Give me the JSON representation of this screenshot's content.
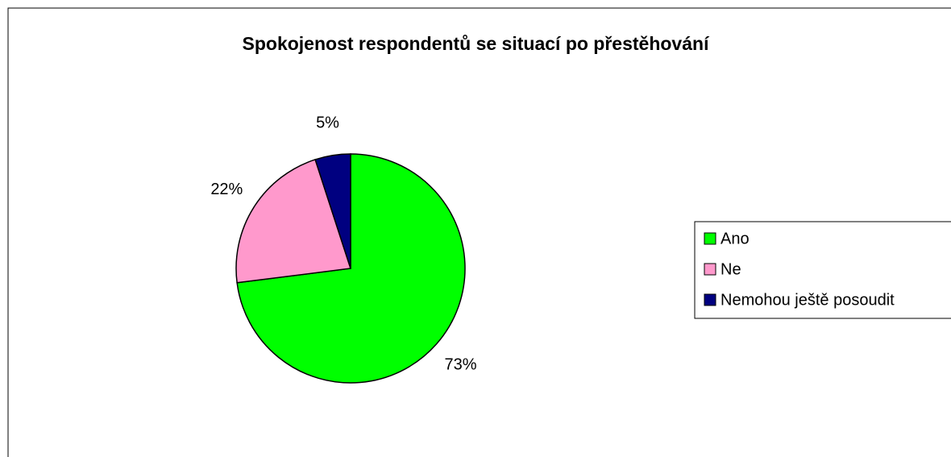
{
  "chart_data": {
    "type": "pie",
    "title": "Spokojenost respondentů se situací po přestěhování",
    "categories": [
      "Ano",
      "Ne",
      "Nemohou ještě posoudit"
    ],
    "values": [
      73,
      22,
      5
    ],
    "value_labels": [
      "73%",
      "22%",
      "5%"
    ],
    "colors": [
      "#00ff00",
      "#ff99cc",
      "#000080"
    ],
    "legend": "right"
  }
}
